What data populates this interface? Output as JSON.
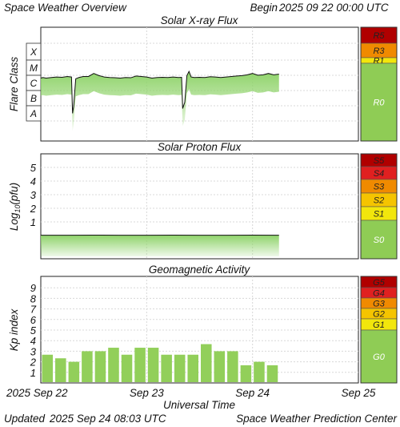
{
  "header": {
    "title": "Space Weather Overview",
    "begin_label": "Begin",
    "begin_time": "2025 09 22 00:00 UTC"
  },
  "footer": {
    "x_axis_label": "Universal Time",
    "updated_label": "Updated",
    "updated_time": "2025 Sep 24 08:03 UTC",
    "credit": "Space Weather Prediction Center"
  },
  "x_axis": {
    "ticks": [
      {
        "day": 0,
        "label": "2025 Sep 22"
      },
      {
        "day": 1,
        "label": "Sep 23"
      },
      {
        "day": 2,
        "label": "Sep 24"
      },
      {
        "day": 3,
        "label": "Sep 25"
      }
    ],
    "range_days": [
      0,
      3
    ]
  },
  "colors": {
    "curve_line": "#111111",
    "curve_fill": "#8fd36a",
    "bar_fill": "#92cf5a",
    "scale_green": "#8fcc55",
    "scale_yellow": "#f2e60c",
    "scale_gold": "#f5c400",
    "scale_orange": "#f08a00",
    "scale_red": "#e02020",
    "scale_darkred": "#b00000"
  },
  "chart_data": [
    {
      "type": "line",
      "title": "Solar X-ray Flux",
      "ylabel": "Flare Class",
      "y_scale": "log",
      "y_class_labels": [
        "X",
        "M",
        "C",
        "B",
        "A"
      ],
      "x_range_days": [
        0,
        3
      ],
      "series": [
        {
          "x": [
            0,
            0.02,
            0.05,
            0.1,
            0.15,
            0.2,
            0.25,
            0.29,
            0.3,
            0.31,
            0.33,
            0.36,
            0.4,
            0.45,
            0.5,
            0.55,
            0.6,
            0.65,
            0.7,
            0.75,
            0.8,
            0.85,
            0.9,
            0.95,
            1.0,
            1.05,
            1.1,
            1.15,
            1.2,
            1.25,
            1.3,
            1.33,
            1.34,
            1.36,
            1.38,
            1.4,
            1.42,
            1.45,
            1.5,
            1.55,
            1.6,
            1.65,
            1.7,
            1.75,
            1.8,
            1.85,
            1.9,
            1.95,
            2.0,
            2.05,
            2.1,
            2.15,
            2.2,
            2.25
          ],
          "flux_wm2": [
            5.5e-07,
            6e-07,
            5.5e-07,
            6e-07,
            6.5e-07,
            6.2e-07,
            7e-07,
            6.5e-07,
            3e-09,
            8e-09,
            5e-07,
            6e-07,
            7e-07,
            7e-07,
            1.1e-06,
            8e-07,
            6.5e-07,
            6e-07,
            5.8e-07,
            5.5e-07,
            6e-07,
            5.8e-07,
            7.5e-07,
            7e-07,
            6.5e-07,
            5.5e-07,
            6e-07,
            6.2e-07,
            6e-07,
            6.5e-07,
            6e-07,
            6.2e-07,
            6e-09,
            1.5e-08,
            8e-07,
            1.5e-06,
            6.5e-07,
            6e-07,
            6.2e-07,
            6e-07,
            6.8e-07,
            6.5e-07,
            6e-07,
            6.5e-07,
            7e-07,
            7.5e-07,
            8e-07,
            9e-07,
            1.1e-06,
            8.5e-07,
            9e-07,
            1.1e-06,
            9e-07,
            1e-06
          ]
        }
      ],
      "scale_name": "R",
      "scale_levels": [
        {
          "label": "R5",
          "color": "#b00000"
        },
        {
          "label": "R3",
          "color": "#f08a00"
        },
        {
          "label": "R1",
          "color": "#f2e60c"
        },
        {
          "label": "R0",
          "color": "#8fcc55"
        }
      ]
    },
    {
      "type": "line",
      "title": "Solar Proton Flux",
      "ylabel": "Log10(pfu)",
      "ylabel_parts": {
        "main": "Log",
        "sub": "10",
        "tail": "(pfu)"
      },
      "yticks": [
        1,
        2,
        3,
        4,
        5
      ],
      "ylim": [
        -1,
        5.8
      ],
      "x_range_days": [
        0,
        3
      ],
      "series": [
        {
          "x": [
            0,
            0.25,
            0.5,
            0.75,
            1.0,
            1.25,
            1.5,
            1.75,
            2.0,
            2.25
          ],
          "log_pfu": [
            -0.03,
            -0.03,
            -0.02,
            -0.03,
            -0.03,
            -0.02,
            -0.03,
            -0.03,
            -0.02,
            -0.03
          ]
        }
      ],
      "scale_name": "S",
      "scale_levels": [
        {
          "label": "S5",
          "color": "#b00000"
        },
        {
          "label": "S4",
          "color": "#e02020"
        },
        {
          "label": "S3",
          "color": "#f08a00"
        },
        {
          "label": "S2",
          "color": "#f5c400"
        },
        {
          "label": "S1",
          "color": "#f2e60c"
        },
        {
          "label": "S0",
          "color": "#8fcc55"
        }
      ]
    },
    {
      "type": "bar",
      "title": "Geomagnetic Activity",
      "ylabel": "Kp index",
      "yticks": [
        1,
        2,
        3,
        4,
        5,
        6,
        7,
        8,
        9
      ],
      "ylim": [
        0,
        10
      ],
      "x_range_days": [
        0,
        3
      ],
      "bar_interval_hours": 3,
      "values": [
        2.67,
        2.33,
        2.0,
        3.0,
        3.0,
        3.33,
        2.67,
        3.33,
        3.33,
        2.67,
        2.67,
        2.67,
        3.67,
        3.0,
        3.0,
        1.67,
        2.0,
        1.67
      ],
      "scale_name": "G",
      "scale_levels": [
        {
          "label": "G5",
          "color": "#b00000"
        },
        {
          "label": "G4",
          "color": "#e02020"
        },
        {
          "label": "G3",
          "color": "#f08a00"
        },
        {
          "label": "G2",
          "color": "#f5c400"
        },
        {
          "label": "G1",
          "color": "#f2e60c"
        },
        {
          "label": "G0",
          "color": "#8fcc55"
        }
      ]
    }
  ]
}
